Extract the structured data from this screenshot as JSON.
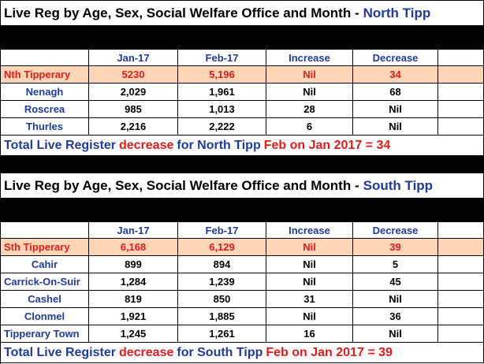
{
  "north": {
    "title_prefix": "Live Reg by Age, Sex, Social Welfare Office and Month -",
    "title_region": "North Tipp",
    "headers": [
      "",
      "Jan-17",
      "Feb-17",
      "Increase",
      "Decrease",
      ""
    ],
    "total": {
      "label": "Nth Tipperary",
      "jan": "5230",
      "feb": "5,196",
      "increase": "Nil",
      "decrease": "34"
    },
    "offices": [
      {
        "label": "Nenagh",
        "jan": "2,029",
        "feb": "1,961",
        "increase": "Nil",
        "decrease": "68"
      },
      {
        "label": "Roscrea",
        "jan": "985",
        "feb": "1,013",
        "increase": "28",
        "decrease": "Nil"
      },
      {
        "label": "Thurles",
        "jan": "2,216",
        "feb": "2,222",
        "increase": "6",
        "decrease": "Nil"
      }
    ],
    "summary": {
      "part1": "Total Live Register",
      "part2": "decrease",
      "part3": "for North Tipp",
      "part4": "Feb on Jan 2017 = 34"
    }
  },
  "south": {
    "title_prefix": "Live Reg by Age, Sex, Social Welfare Office and Month -",
    "title_region": "South Tipp",
    "headers": [
      "",
      "Jan-17",
      "Feb-17",
      "Increase",
      "Decrease",
      ""
    ],
    "total": {
      "label": "Sth Tipperary",
      "jan": "6,168",
      "feb": "6,129",
      "increase": "Nil",
      "decrease": "39"
    },
    "offices": [
      {
        "label": "Cahir",
        "jan": "899",
        "feb": "894",
        "increase": "Nil",
        "decrease": "5"
      },
      {
        "label": "Carrick-On-Suir",
        "jan": "1,284",
        "feb": "1,239",
        "increase": "Nil",
        "decrease": "45"
      },
      {
        "label": "Cashel",
        "jan": "819",
        "feb": "850",
        "increase": "31",
        "decrease": "Nil"
      },
      {
        "label": "Clonmel",
        "jan": "1,921",
        "feb": "1,885",
        "increase": "Nil",
        "decrease": "36"
      },
      {
        "label": "Tipperary Town",
        "jan": "1,245",
        "feb": "1,261",
        "increase": "16",
        "decrease": "Nil"
      }
    ],
    "summary": {
      "part1": "Total Live Register",
      "part2": "decrease",
      "part3": "for South Tipp",
      "part4": "Feb on Jan 2017 = 39"
    }
  },
  "colors": {
    "blue": "#1f3b9c",
    "red": "#e31b1b",
    "peach": "#fbd5b5",
    "black": "#000000"
  }
}
